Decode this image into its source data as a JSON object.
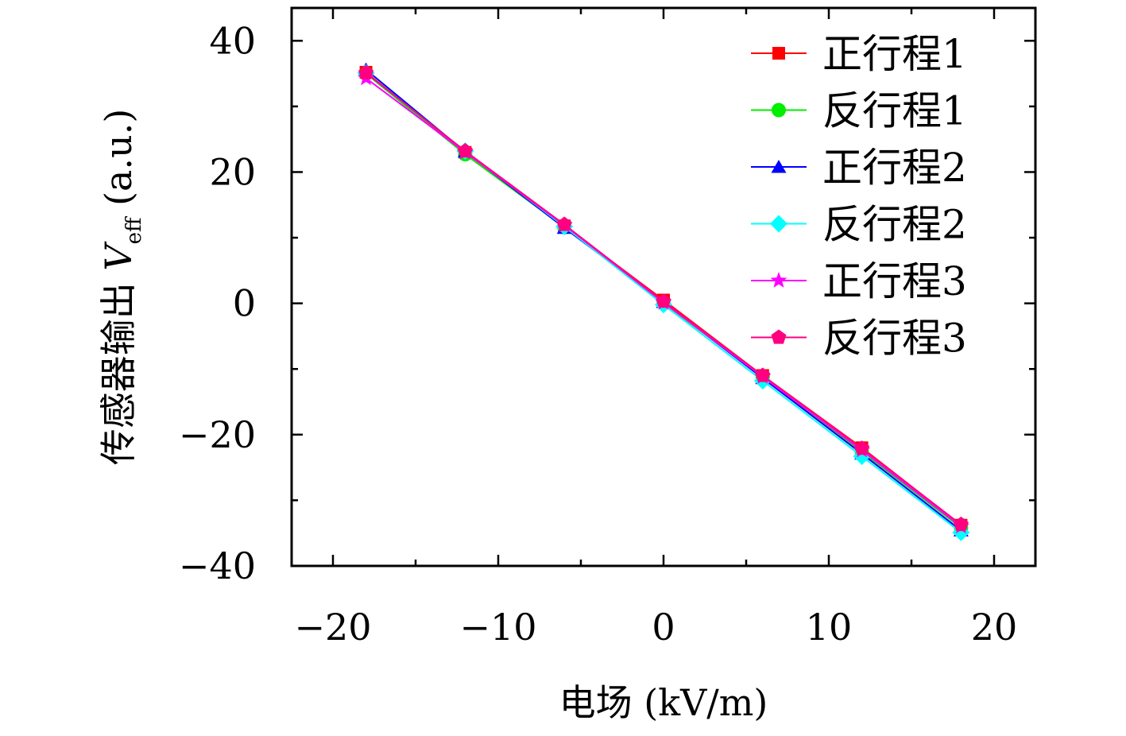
{
  "chart_data": {
    "type": "line",
    "title": "",
    "xlabel": "电场 (kV/m)",
    "ylabel_prefix": "传感器输出 ",
    "ylabel_var": "V",
    "ylabel_sub": "eff",
    "ylabel_suffix": " (a.u.)",
    "xlim": [
      -22.5,
      22.5
    ],
    "ylim": [
      -40,
      45
    ],
    "xticks": [
      -20,
      -10,
      0,
      10,
      20
    ],
    "yticks": [
      -40,
      -20,
      0,
      20,
      40
    ],
    "xtick_labels": [
      "−20",
      "−10",
      "0",
      "10",
      "20"
    ],
    "ytick_labels": [
      "−40",
      "−20",
      "0",
      "20",
      "40"
    ],
    "grid": false,
    "legend_position": "top-right",
    "x": [
      -18,
      -12,
      -6,
      0,
      6,
      12,
      18
    ],
    "series": [
      {
        "name": "正行程1",
        "color": "#ff0000",
        "marker": "square",
        "values": [
          35.2,
          23.0,
          11.8,
          0.5,
          -11.0,
          -22.0,
          -33.8
        ]
      },
      {
        "name": "反行程1",
        "color": "#00ee00",
        "marker": "circle",
        "values": [
          35.0,
          22.7,
          11.6,
          0.0,
          -11.2,
          -22.6,
          -34.2
        ]
      },
      {
        "name": "正行程2",
        "color": "#0000ff",
        "marker": "triangle",
        "values": [
          35.6,
          23.1,
          11.5,
          0.2,
          -11.4,
          -22.9,
          -34.6
        ]
      },
      {
        "name": "反行程2",
        "color": "#00ffff",
        "marker": "diamond",
        "values": [
          35.1,
          23.2,
          11.7,
          -0.2,
          -11.8,
          -23.3,
          -34.9
        ]
      },
      {
        "name": "正行程3",
        "color": "#ff00ff",
        "marker": "star",
        "values": [
          34.3,
          23.0,
          11.9,
          0.1,
          -11.2,
          -22.4,
          -34.0
        ]
      },
      {
        "name": "反行程3",
        "color": "#ff0080",
        "marker": "pentagon",
        "values": [
          35.1,
          23.2,
          12.0,
          0.3,
          -11.0,
          -22.1,
          -33.7
        ]
      }
    ]
  }
}
